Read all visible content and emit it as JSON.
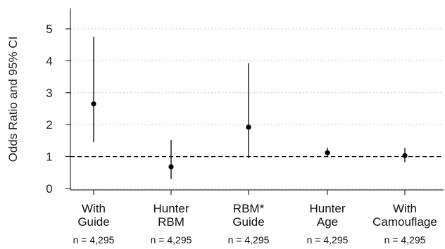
{
  "chart_data": {
    "type": "scatter",
    "ylabel": "Odds Ratio and 95% CI",
    "xlabel": "",
    "ylim": [
      0,
      5
    ],
    "yticks": [
      0,
      1,
      2,
      3,
      4,
      5
    ],
    "grid": "horizontal-dotted",
    "reference_line": 1,
    "categories": [
      {
        "lines": [
          "With",
          "Guide"
        ],
        "n": "n = 4,295",
        "or": 2.65,
        "lower": 1.45,
        "upper": 4.75
      },
      {
        "lines": [
          "Hunter",
          "RBM"
        ],
        "n": "n = 4,295",
        "or": 0.68,
        "lower": 0.3,
        "upper": 1.52
      },
      {
        "lines": [
          "RBM*",
          "Guide"
        ],
        "n": "n = 4,295",
        "or": 1.92,
        "lower": 0.95,
        "upper": 3.92
      },
      {
        "lines": [
          "Hunter",
          "Age"
        ],
        "n": "n = 4,295",
        "or": 1.12,
        "lower": 0.98,
        "upper": 1.28
      },
      {
        "lines": [
          "With",
          "Camouflage"
        ],
        "n": "n = 4,295",
        "or": 1.03,
        "lower": 0.82,
        "upper": 1.27
      }
    ]
  }
}
